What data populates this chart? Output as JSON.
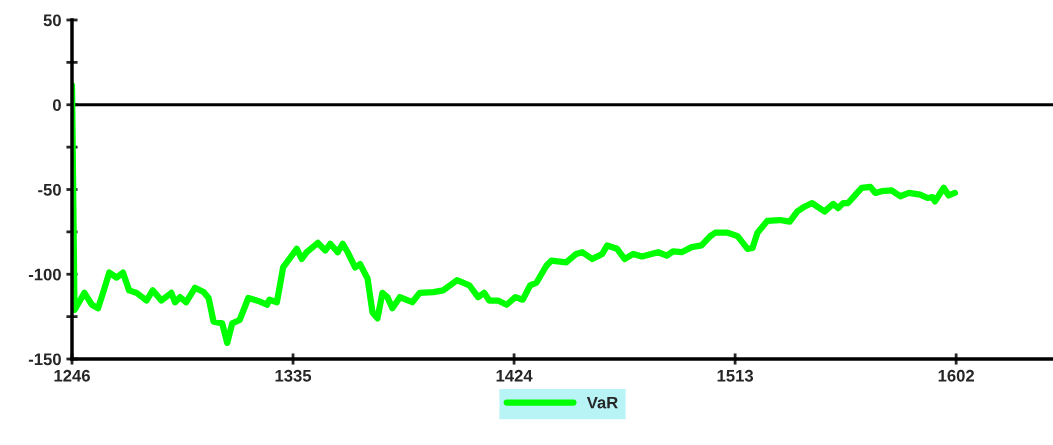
{
  "chart_data": {
    "type": "line",
    "xlim": [
      1246,
      1641
    ],
    "ylim": [
      -150,
      50
    ],
    "xticks": [
      1246,
      1335,
      1424,
      1513,
      1602
    ],
    "yticks": [
      -150,
      {
        "value": -125,
        "label": null
      },
      -100,
      {
        "value": -75,
        "label": null
      },
      -50,
      {
        "value": -25,
        "label": null
      },
      0,
      {
        "value": 25,
        "label": null
      },
      50
    ],
    "ref_lines": [
      {
        "axis": "y",
        "value": 0,
        "color": "#000000"
      }
    ],
    "legend": "bottom",
    "grid": false,
    "marker": "none",
    "line_style": "solid",
    "series": [
      {
        "name": "VaR",
        "color": "#00ff00",
        "x": [
          1246,
          1247,
          1251,
          1254,
          1256.5,
          1258.5,
          1261,
          1264,
          1266.5,
          1269,
          1272,
          1276,
          1278.5,
          1282,
          1286,
          1287.5,
          1289.5,
          1292,
          1295.5,
          1299,
          1301,
          1303,
          1306.5,
          1308.5,
          1310.5,
          1313.5,
          1317,
          1321.5,
          1324.5,
          1325.5,
          1328.5,
          1331,
          1333,
          1336.5,
          1338.5,
          1340.5,
          1345,
          1348,
          1350,
          1353,
          1355,
          1357,
          1360,
          1362,
          1365,
          1367,
          1369,
          1371,
          1373,
          1375,
          1378,
          1383,
          1386,
          1391.5,
          1395.5,
          1401,
          1406,
          1409.5,
          1412,
          1414,
          1417.5,
          1421,
          1424.5,
          1427.5,
          1430.5,
          1433,
          1437,
          1439,
          1445,
          1449,
          1451.5,
          1455.5,
          1459.5,
          1461.5,
          1465.5,
          1468.5,
          1472,
          1475.5,
          1482,
          1485.5,
          1488,
          1491.5,
          1495.5,
          1499.5,
          1503,
          1505,
          1510,
          1514,
          1518,
          1520,
          1522,
          1526,
          1531,
          1535,
          1538,
          1540.5,
          1544,
          1547,
          1549,
          1552.5,
          1554.5,
          1556.5,
          1558.5,
          1561.5,
          1564,
          1567.5,
          1569.5,
          1572,
          1576,
          1579.5,
          1583,
          1587.5,
          1590.5,
          1592.5,
          1593.5,
          1597,
          1599,
          1601.5
        ],
        "values": [
          11.5,
          -121,
          -111,
          -118,
          -120,
          -111,
          -99,
          -102,
          -99,
          -109.5,
          -111,
          -115.5,
          -109.5,
          -115.5,
          -111,
          -116.5,
          -113.5,
          -116.5,
          -108,
          -110.5,
          -114,
          -128,
          -129,
          -140.5,
          -129,
          -127,
          -114,
          -116,
          -118,
          -115,
          -116.5,
          -96,
          -92,
          -85,
          -91,
          -87,
          -81.5,
          -86,
          -82,
          -87,
          -82,
          -87,
          -96,
          -94,
          -102.5,
          -122.5,
          -126,
          -111,
          -113.5,
          -120,
          -113.5,
          -116.5,
          -111,
          -110.5,
          -109.5,
          -103.5,
          -106.5,
          -113.5,
          -111,
          -115.5,
          -115.5,
          -118,
          -113.5,
          -115,
          -106.5,
          -105,
          -95,
          -92,
          -93,
          -88,
          -87,
          -91,
          -88,
          -83,
          -85,
          -91,
          -88,
          -89.5,
          -87,
          -89,
          -86.5,
          -87,
          -84,
          -83,
          -77.5,
          -75.5,
          -75.5,
          -77.5,
          -85,
          -84.5,
          -75.5,
          -68.5,
          -68,
          -69,
          -63,
          -60.5,
          -58,
          -61,
          -63,
          -58.5,
          -61,
          -58,
          -58,
          -53,
          -49,
          -48.5,
          -52,
          -51,
          -50.5,
          -54,
          -52,
          -53,
          -55,
          -54.5,
          -57,
          -49,
          -53.5,
          -52
        ]
      }
    ]
  }
}
